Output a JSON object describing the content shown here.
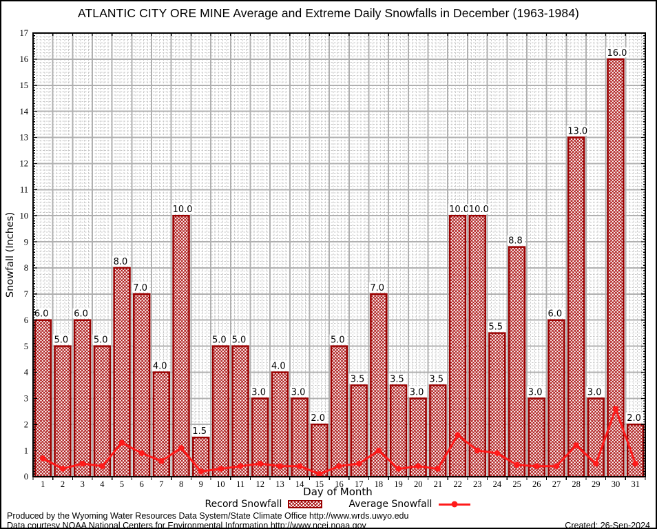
{
  "chart_data": {
    "type": "bar",
    "title": "ATLANTIC CITY ORE MINE Average and Extreme Daily Snowfalls in December (1963-1984)",
    "xlabel": "Day of Month",
    "ylabel": "Snowfall (Inches)",
    "ylim": [
      0,
      17
    ],
    "ytick_step": 1,
    "grid": true,
    "legend_position": "bottom",
    "bar_label_format": "one-decimal",
    "categories": [
      1,
      2,
      3,
      4,
      5,
      6,
      7,
      8,
      9,
      10,
      11,
      12,
      13,
      14,
      15,
      16,
      17,
      18,
      19,
      20,
      21,
      22,
      23,
      24,
      25,
      26,
      27,
      28,
      29,
      30,
      31
    ],
    "series": [
      {
        "name": "Record Snowfall",
        "type": "bar",
        "color": "#990000",
        "values": [
          6.0,
          5.0,
          6.0,
          5.0,
          8.0,
          7.0,
          4.0,
          10.0,
          1.5,
          5.0,
          5.0,
          3.0,
          4.0,
          3.0,
          2.0,
          5.0,
          3.5,
          7.0,
          3.5,
          3.0,
          3.5,
          10.0,
          10.0,
          5.5,
          8.8,
          3.0,
          6.0,
          13.0,
          3.0,
          16.0,
          2.0
        ]
      },
      {
        "name": "Average Snowfall",
        "type": "line",
        "color": "#ff1a1a",
        "values": [
          0.7,
          0.3,
          0.5,
          0.4,
          1.3,
          0.9,
          0.6,
          1.1,
          0.2,
          0.3,
          0.4,
          0.5,
          0.4,
          0.4,
          0.1,
          0.4,
          0.5,
          1.0,
          0.3,
          0.4,
          0.3,
          1.6,
          1.0,
          0.9,
          0.45,
          0.4,
          0.4,
          1.2,
          0.5,
          2.6,
          0.5
        ]
      }
    ]
  },
  "colors": {
    "bar_border": "#990000",
    "bar_hatch": "#a40000",
    "line": "#ff1a1a",
    "grid_major": "#b0b0b0",
    "grid_minor": "#c9c9c9",
    "frame": "#000000",
    "background": "#ffffff"
  },
  "footer": {
    "line1": "Produced by the Wyoming Water Resources Data System/State Climate Office http://www.wrds.uwyo.edu",
    "line2": "Data courtesy NOAA National Centers for Environmental Information http://www.ncei.noaa.gov",
    "created": "Created: 26-Sep-2024"
  }
}
